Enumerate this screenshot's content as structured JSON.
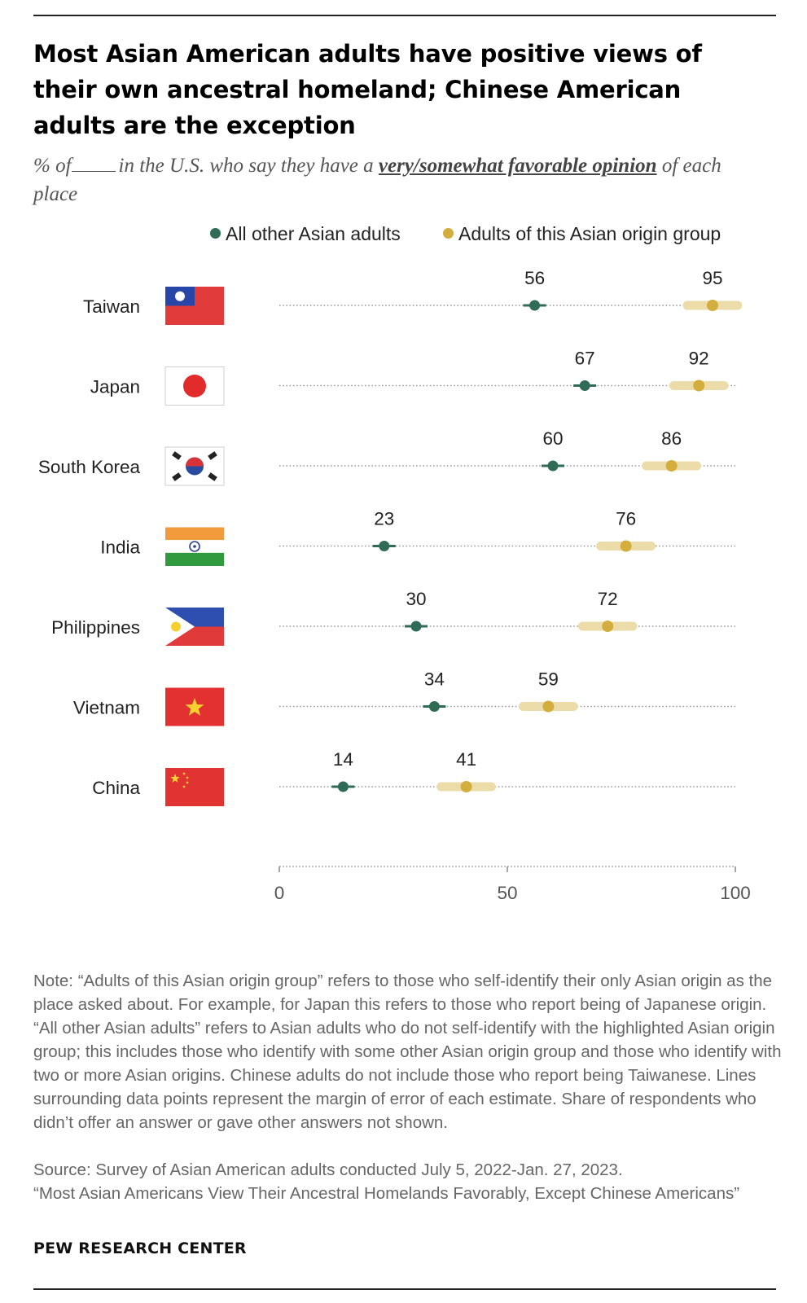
{
  "header": {
    "title": "Most Asian American adults have positive views of their own ancestral homeland; Chinese American adults are the exception",
    "subtitle_prefix": "% of",
    "subtitle_mid": "in the U.S. who say they have a",
    "subtitle_emph": "very/somewhat favorable opinion",
    "subtitle_suffix": "of each place"
  },
  "colors": {
    "other": "#2f6b55",
    "group": "#d4ad3f",
    "moe_band": "#ecdcaa"
  },
  "chart_data": {
    "type": "scatter",
    "categories": [
      "Taiwan",
      "Japan",
      "South Korea",
      "India",
      "Philippines",
      "Vietnam",
      "China"
    ],
    "series": [
      {
        "name": "All other Asian adults",
        "values": [
          56,
          67,
          60,
          23,
          30,
          34,
          14
        ]
      },
      {
        "name": "Adults of this Asian origin group",
        "values": [
          95,
          92,
          86,
          76,
          72,
          59,
          41
        ]
      }
    ],
    "xlim": [
      0,
      100
    ],
    "xticks": [
      0,
      50,
      100
    ],
    "legend": "top",
    "grid": false,
    "flag_icons": [
      "taiwan-flag-icon",
      "japan-flag-icon",
      "south-korea-flag-icon",
      "india-flag-icon",
      "philippines-flag-icon",
      "vietnam-flag-icon",
      "china-flag-icon"
    ]
  },
  "footer": {
    "note": "Note: “Adults of this Asian origin group” refers to those who self-identify their only Asian origin as the place asked about. For example, for Japan this refers to those who report being of Japanese origin. “All other Asian adults” refers to Asian adults who do not self-identify with the highlighted Asian origin group; this includes those who identify with some other Asian origin group and those who identify with two or more Asian origins. Chinese adults do not include those who report being Taiwanese. Lines surrounding data points represent the margin of error of each estimate. Share of respondents who didn’t offer an answer or gave other answers not shown.",
    "source": "Source: Survey of Asian American adults conducted July 5, 2022-Jan. 27, 2023.",
    "report": "“Most Asian Americans View Their Ancestral Homelands Favorably, Except Chinese Americans”",
    "brand": "PEW RESEARCH CENTER"
  }
}
